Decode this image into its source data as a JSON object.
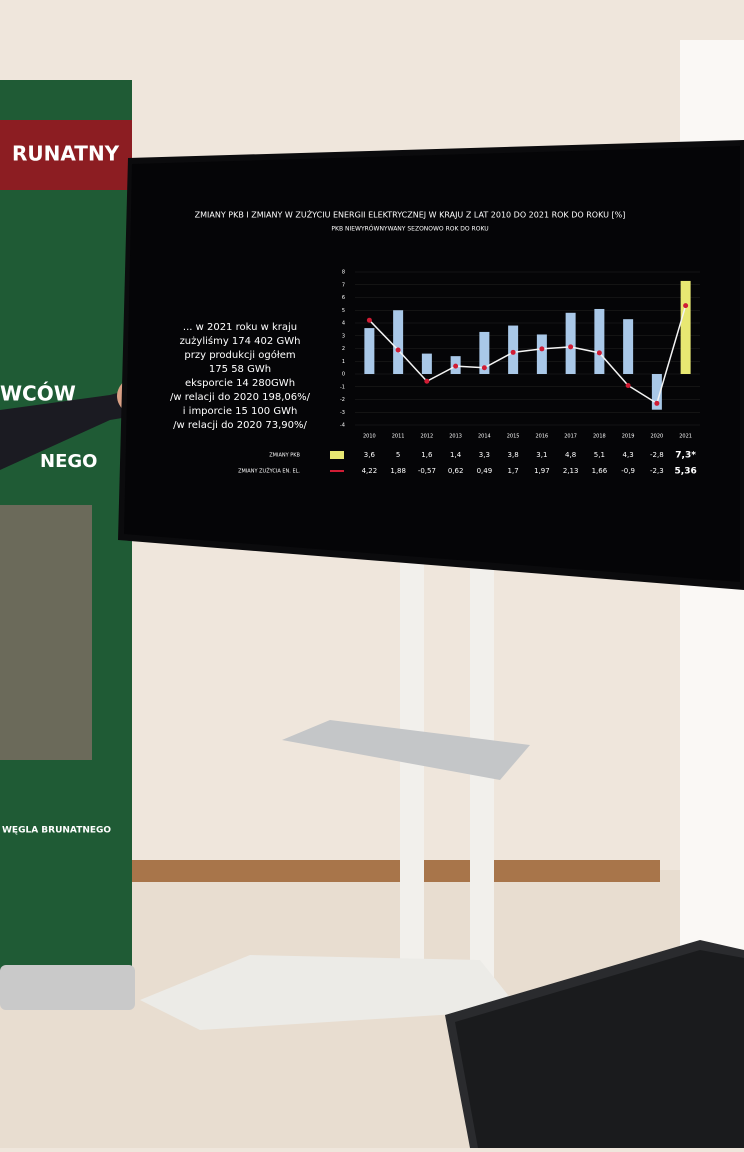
{
  "banner": {
    "header": "RUNATNY",
    "line1": "WCÓW",
    "line2": "NEGO",
    "footer": "WĘGLA BRUNATNEGO"
  },
  "screen_text": [
    "... w 2021 roku w kraju",
    "zużyliśmy 174 402 GWh",
    "przy produkcji ogółem",
    "175 58 GWh",
    "eksporcie 14 280GWh",
    "/w relacji do 2020 198,06%/",
    "i imporcie 15 100 GWh",
    "/w relacji do 2020 73,90%/"
  ],
  "chart_data": {
    "type": "bar_line",
    "title": "ZMIANY PKB I ZMIANY W ZUŻYCIU ENERGII ELEKTRYCZNEJ W KRAJU Z LAT 2010 DO 2021 ROK DO ROKU [%]",
    "subtitle": "PKB NIEWYRÓWNYWANY SEZONOWO ROK DO ROKU",
    "categories": [
      "2010",
      "2011",
      "2012",
      "2013",
      "2014",
      "2015",
      "2016",
      "2017",
      "2018",
      "2019",
      "2020",
      "2021"
    ],
    "series": [
      {
        "name": "ZMIANY PKB",
        "type": "bar",
        "color": "#a9c8e8",
        "colors": [
          "#a9c8e8",
          "#a9c8e8",
          "#a9c8e8",
          "#a9c8e8",
          "#a9c8e8",
          "#a9c8e8",
          "#a9c8e8",
          "#a9c8e8",
          "#a9c8e8",
          "#a9c8e8",
          "#a9c8e8",
          "#e8e872"
        ],
        "values": [
          3.6,
          5,
          1.6,
          1.4,
          3.3,
          3.8,
          3.1,
          4.8,
          5.1,
          4.3,
          -2.8,
          7.3
        ],
        "value_labels": [
          "3,6",
          "5",
          "1,6",
          "1,4",
          "3,3",
          "3,8",
          "3,1",
          "4,8",
          "5,1",
          "4,3",
          "-2,8",
          "7,3*"
        ]
      },
      {
        "name": "ZMIANY ZUŻYCIA EN. EL.",
        "type": "line",
        "color": "#d01c34",
        "values": [
          4.22,
          1.88,
          -0.57,
          0.62,
          0.49,
          1.7,
          1.97,
          2.13,
          1.66,
          -0.9,
          -2.3,
          5.36
        ],
        "value_labels": [
          "4,22",
          "1,88",
          "-0,57",
          "0,62",
          "0,49",
          "1,7",
          "1,97",
          "2,13",
          "1,66",
          "-0,9",
          "-2,3",
          "5,36"
        ]
      }
    ],
    "ylim": [
      -4,
      8
    ],
    "yticks": [
      -4,
      -3,
      -2,
      -1,
      0,
      1,
      2,
      3,
      4,
      5,
      6,
      7,
      8
    ],
    "grid": true
  }
}
